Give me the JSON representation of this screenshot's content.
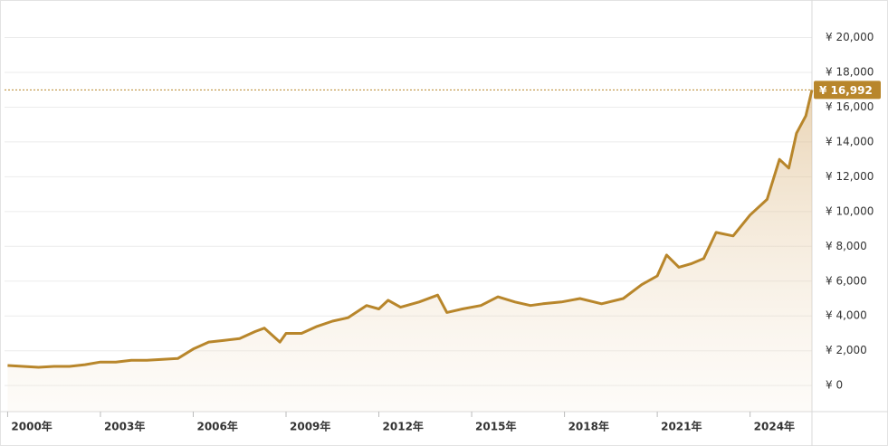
{
  "chart_data": {
    "type": "line",
    "x": [
      2000.0,
      2000.5,
      2001.0,
      2001.5,
      2002.0,
      2002.5,
      2003.0,
      2003.5,
      2004.0,
      2004.5,
      2005.0,
      2005.5,
      2006.0,
      2006.5,
      2007.0,
      2007.5,
      2008.0,
      2008.3,
      2008.8,
      2009.0,
      2009.5,
      2010.0,
      2010.5,
      2011.0,
      2011.6,
      2012.0,
      2012.3,
      2012.7,
      2013.3,
      2013.9,
      2014.2,
      2014.7,
      2015.3,
      2015.85,
      2016.4,
      2016.9,
      2017.3,
      2017.9,
      2018.5,
      2019.2,
      2019.9,
      2020.5,
      2021.0,
      2021.3,
      2021.7,
      2022.1,
      2022.5,
      2022.9,
      2023.45,
      2024.0,
      2024.55,
      2024.95,
      2025.25,
      2025.5,
      2025.8,
      2026.0
    ],
    "values": [
      1150,
      1100,
      1050,
      1100,
      1100,
      1200,
      1350,
      1350,
      1450,
      1450,
      1500,
      1550,
      2100,
      2500,
      2600,
      2700,
      3100,
      3300,
      2500,
      3000,
      3000,
      3400,
      3700,
      3900,
      4600,
      4400,
      4900,
      4500,
      4800,
      5200,
      4200,
      4400,
      4600,
      5100,
      4800,
      4600,
      4700,
      4800,
      5000,
      4700,
      5000,
      5800,
      6300,
      7500,
      6800,
      7000,
      7300,
      8800,
      8600,
      9800,
      10700,
      13000,
      12500,
      14500,
      15500,
      16992
    ],
    "color": "#b8862b",
    "xlim": [
      1999.9,
      2026.0
    ],
    "xticks": [
      {
        "value": 2000,
        "label": "2000年"
      },
      {
        "value": 2003,
        "label": "2003年"
      },
      {
        "value": 2006,
        "label": "2006年"
      },
      {
        "value": 2009,
        "label": "2009年"
      },
      {
        "value": 2012,
        "label": "2012年"
      },
      {
        "value": 2015,
        "label": "2015年"
      },
      {
        "value": 2018,
        "label": "2018年"
      },
      {
        "value": 2021,
        "label": "2021年"
      },
      {
        "value": 2024,
        "label": "2024年"
      }
    ],
    "ylim": [
      -1500,
      21900
    ],
    "yticks": [
      {
        "value": 0,
        "label": "¥ 0"
      },
      {
        "value": 2000,
        "label": "¥ 2,000"
      },
      {
        "value": 4000,
        "label": "¥ 4,000"
      },
      {
        "value": 6000,
        "label": "¥ 6,000"
      },
      {
        "value": 8000,
        "label": "¥ 8,000"
      },
      {
        "value": 10000,
        "label": "¥ 10,000"
      },
      {
        "value": 12000,
        "label": "¥ 12,000"
      },
      {
        "value": 14000,
        "label": "¥ 14,000"
      },
      {
        "value": 16000,
        "label": "¥ 16,000"
      },
      {
        "value": 18000,
        "label": "¥ 18,000"
      },
      {
        "value": 20000,
        "label": "¥ 20,000"
      }
    ],
    "grid": true,
    "current_price": {
      "value": 16992,
      "label": "¥ 16,992"
    }
  }
}
